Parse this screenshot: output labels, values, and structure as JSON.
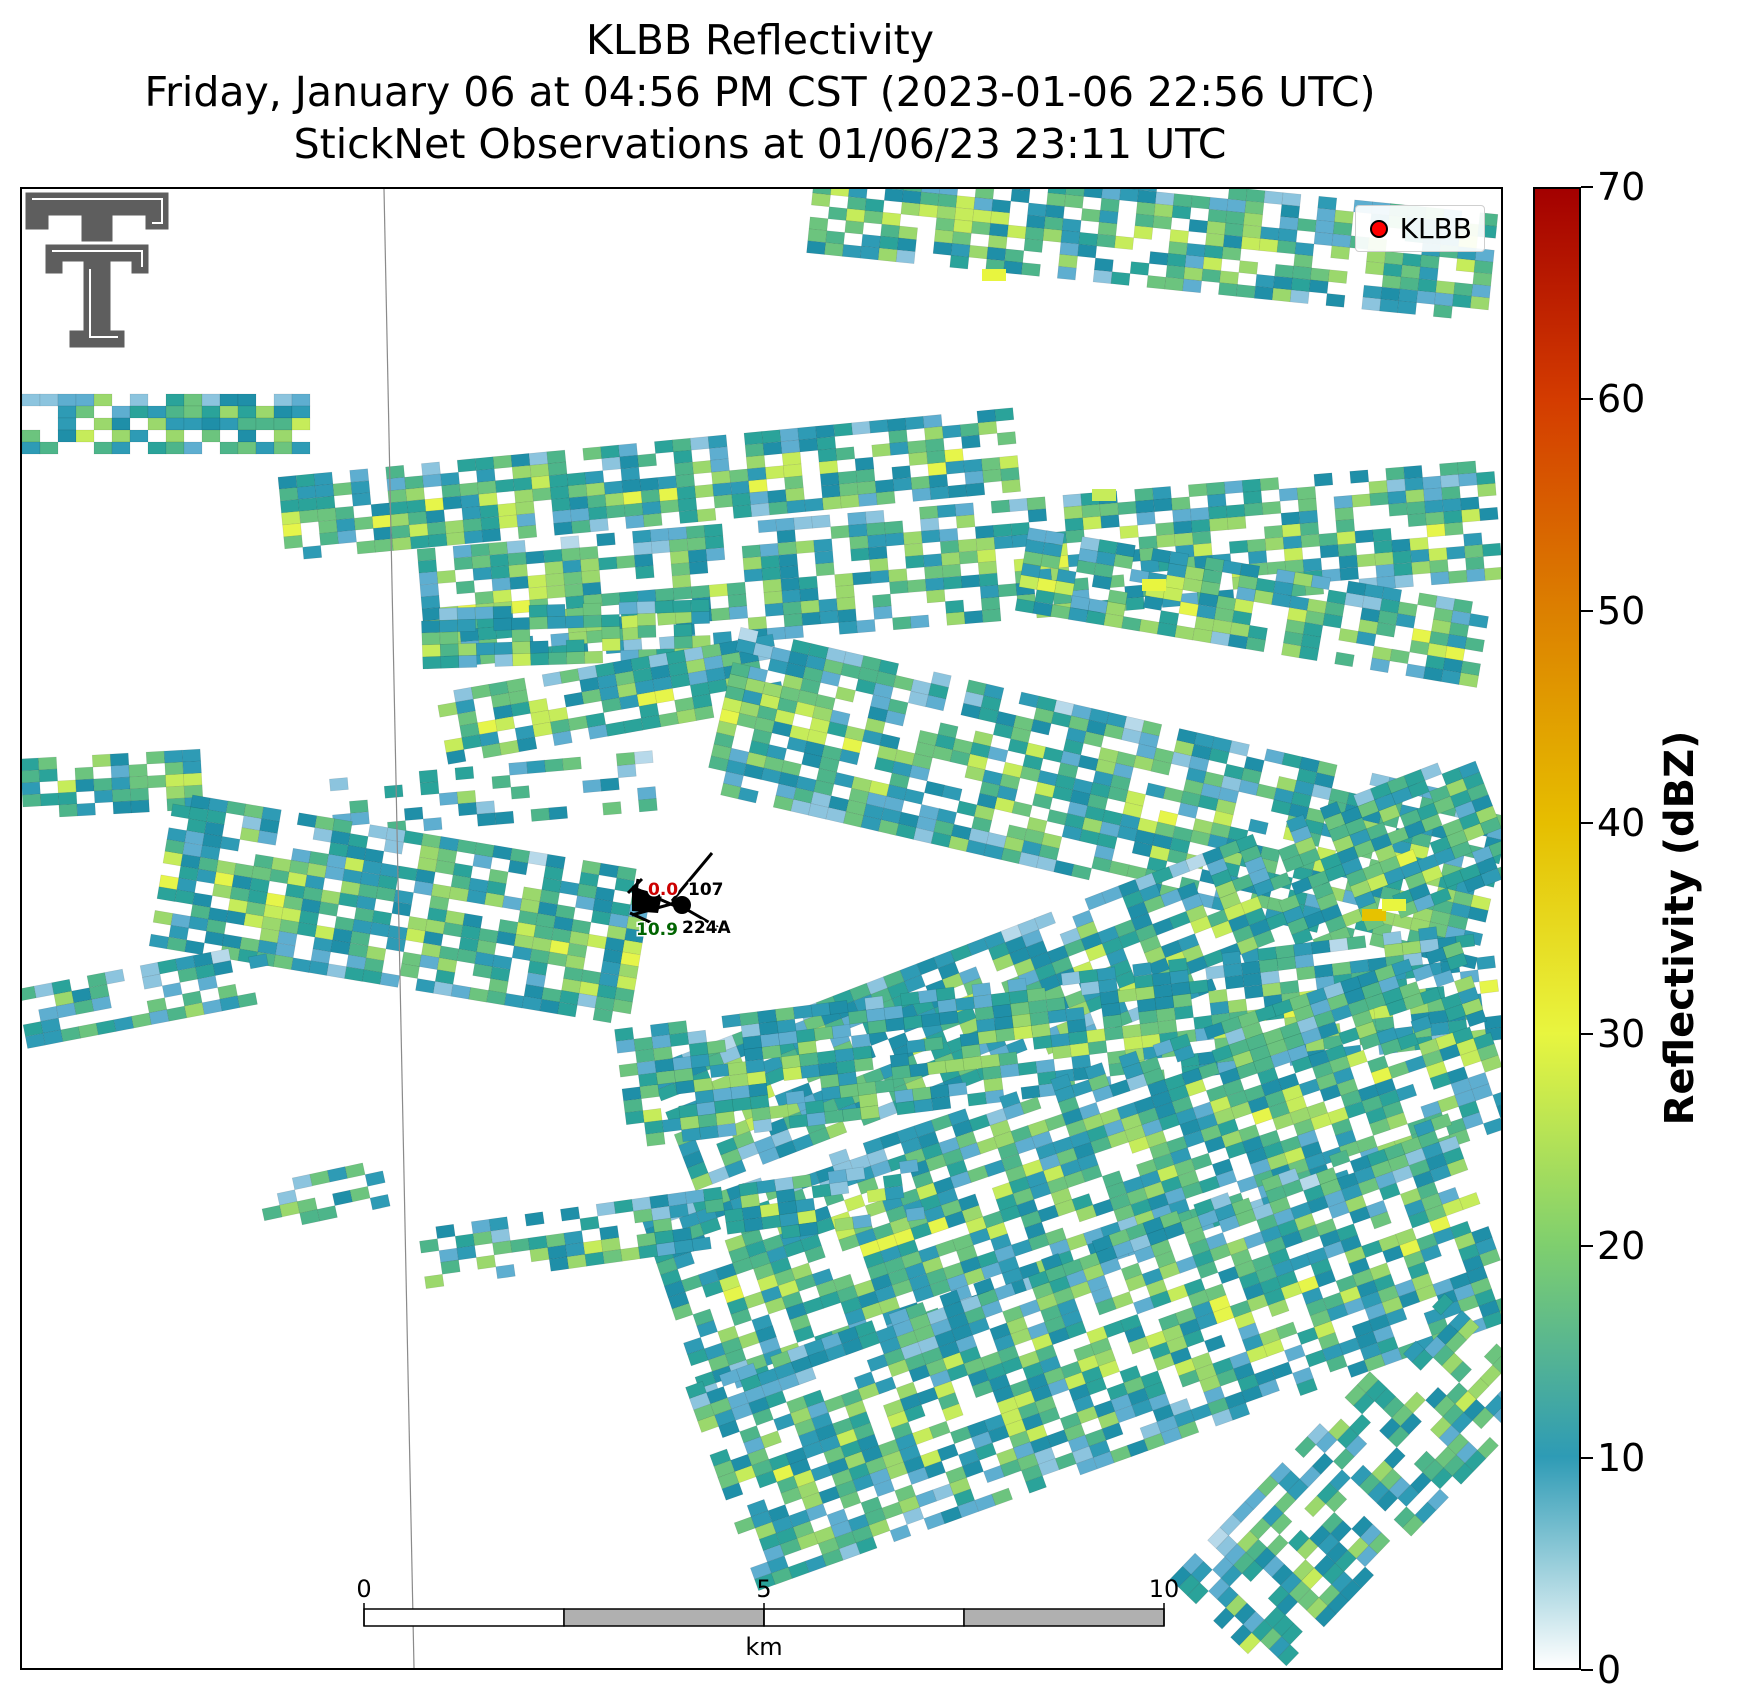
{
  "title": {
    "line1": "KLBB Reflectivity",
    "line2": "Friday, January 06 at 04:56 PM CST (2023-01-06 22:56 UTC)",
    "line3": "StickNet Observations at 01/06/23 23:11 UTC"
  },
  "legend": {
    "label": "KLBB",
    "marker_color": "#ff0000"
  },
  "logo": {
    "icon": "texas-tech-double-t-logo"
  },
  "stations": {
    "temperature": "0.0",
    "pressure_label": "107",
    "dewpoint": "10.9",
    "station_id": "224A",
    "temperature_color": "#cc0000",
    "dewpoint_color": "#006400"
  },
  "scale_bar": {
    "unit": "km",
    "ticks": [
      "0",
      "5",
      "10"
    ],
    "values": [
      0,
      5,
      10
    ]
  },
  "colorbar": {
    "label": "Reflectivity (dBZ)",
    "min": 0,
    "max": 70,
    "tick_values": [
      0,
      10,
      20,
      30,
      40,
      50,
      60,
      70
    ],
    "tick_labels": [
      "0",
      "10",
      "20",
      "30",
      "40",
      "50",
      "60",
      "70"
    ],
    "colors": [
      "#ffffff",
      "#2e9bb5",
      "#7fcf6e",
      "#e8f53f",
      "#e6be00",
      "#dc8000",
      "#d43c00",
      "#a30000"
    ]
  }
}
